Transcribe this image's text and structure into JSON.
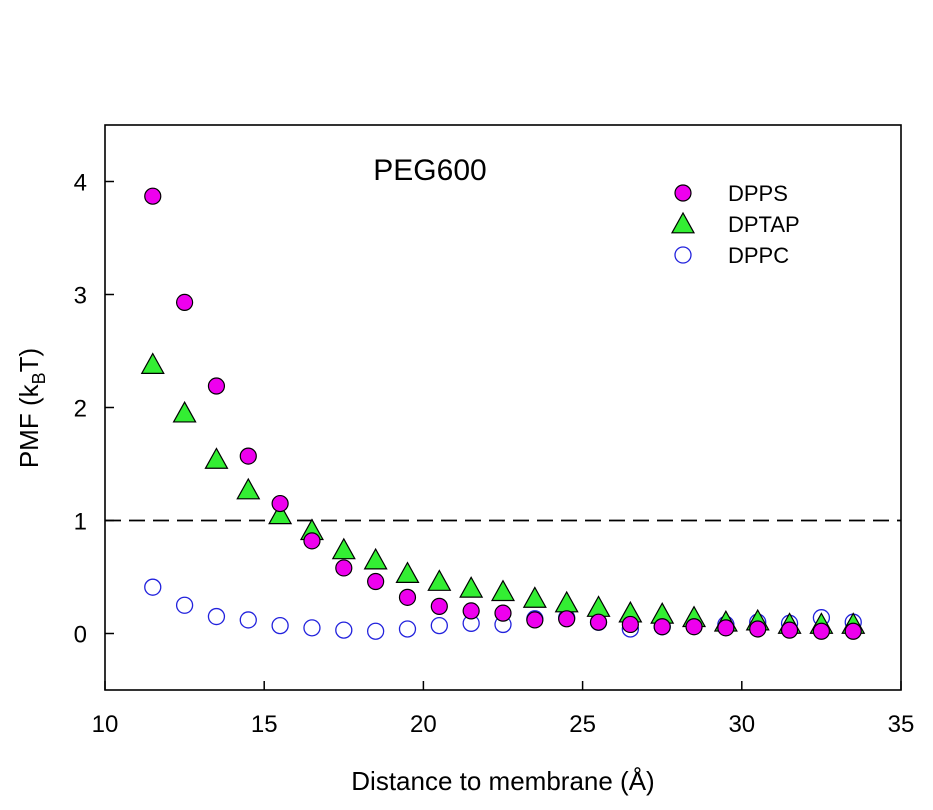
{
  "chart_data": {
    "type": "scatter",
    "title": "PEG600",
    "xlabel": "Distance to membrane (Å)",
    "ylabel_main": "PMF (k",
    "ylabel_sub": "B",
    "ylabel_tail": "T)",
    "xlim": [
      10,
      35
    ],
    "ylim": [
      -0.5,
      4.5
    ],
    "xticks": [
      10,
      15,
      20,
      25,
      30,
      35
    ],
    "yticks": [
      0,
      1,
      2,
      3,
      4
    ],
    "reference_line": {
      "y": 1,
      "style": "dashed"
    },
    "legend_position": "top-right",
    "series": [
      {
        "name": "DPPS",
        "marker": "circle",
        "fill": "#ee00ee",
        "stroke": "#000000",
        "x": [
          11.5,
          12.5,
          13.5,
          14.5,
          15.5,
          16.5,
          17.5,
          18.5,
          19.5,
          20.5,
          21.5,
          22.5,
          23.5,
          24.5,
          25.5,
          26.5,
          27.5,
          28.5,
          29.5,
          30.5,
          31.5,
          32.5,
          33.5
        ],
        "values": [
          3.87,
          2.93,
          2.19,
          1.57,
          1.15,
          0.82,
          0.58,
          0.46,
          0.32,
          0.24,
          0.2,
          0.18,
          0.12,
          0.13,
          0.1,
          0.08,
          0.06,
          0.06,
          0.05,
          0.04,
          0.03,
          0.02,
          0.02
        ]
      },
      {
        "name": "DPTAP",
        "marker": "triangle",
        "fill": "#33ee33",
        "stroke": "#000000",
        "x": [
          11.5,
          12.5,
          13.5,
          14.5,
          15.5,
          16.5,
          17.5,
          18.5,
          19.5,
          20.5,
          21.5,
          22.5,
          23.5,
          24.5,
          25.5,
          26.5,
          27.5,
          28.5,
          29.5,
          30.5,
          31.5,
          32.5,
          33.5
        ],
        "values": [
          2.38,
          1.95,
          1.54,
          1.27,
          1.05,
          0.91,
          0.74,
          0.65,
          0.53,
          0.46,
          0.4,
          0.37,
          0.31,
          0.27,
          0.23,
          0.18,
          0.17,
          0.14,
          0.1,
          0.11,
          0.08,
          0.08,
          0.08
        ]
      },
      {
        "name": "DPPC",
        "marker": "circle-open",
        "fill": "none",
        "stroke": "#2222dd",
        "x": [
          11.5,
          12.5,
          13.5,
          14.5,
          15.5,
          16.5,
          17.5,
          18.5,
          19.5,
          20.5,
          21.5,
          22.5,
          23.5,
          24.5,
          25.5,
          26.5,
          27.5,
          28.5,
          29.5,
          30.5,
          31.5,
          32.5,
          33.5
        ],
        "values": [
          0.41,
          0.25,
          0.15,
          0.12,
          0.07,
          0.05,
          0.03,
          0.02,
          0.04,
          0.07,
          0.09,
          0.08,
          0.13,
          0.14,
          0.1,
          0.04,
          0.06,
          0.07,
          0.08,
          0.1,
          0.09,
          0.14,
          0.1
        ]
      }
    ]
  }
}
